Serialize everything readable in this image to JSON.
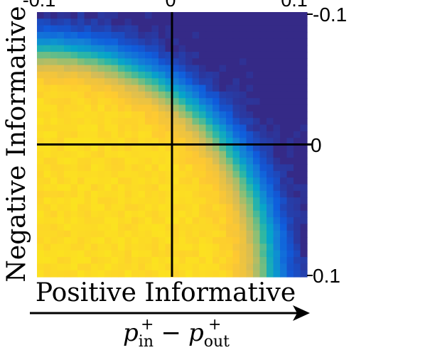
{
  "chart_data": {
    "type": "heatmap",
    "title": "",
    "xlabel": "Positive Informative",
    "ylabel": "Negative Informative",
    "x_arrow_label_main": "p",
    "x_arrow_label_sub_1": "in",
    "x_arrow_label_sub_2": "out",
    "x_arrow_label_sup": "+",
    "x_arrow_label_minus": "−",
    "xlim": [
      -0.1,
      0.1
    ],
    "ylim": [
      -0.1,
      0.1
    ],
    "xticks_top": [
      "-0.1",
      "0",
      "0.1"
    ],
    "yticks_right": [
      "-0.1",
      "0",
      "0.1"
    ],
    "crosshair_x": 0,
    "crosshair_y": 0,
    "grid": false,
    "colormap": {
      "name": "parula",
      "low": "#352a87",
      "stops": [
        "#352a87",
        "#0f5cdd",
        "#1481d6",
        "#06a4ca",
        "#2eb7a4",
        "#87bf77",
        "#d1bb59",
        "#fec832",
        "#f9fb0e"
      ]
    },
    "boundary_note": "values high (yellow) toward bottom-left, low (dark blue) toward top-right",
    "rows": 40,
    "cols": 40
  }
}
